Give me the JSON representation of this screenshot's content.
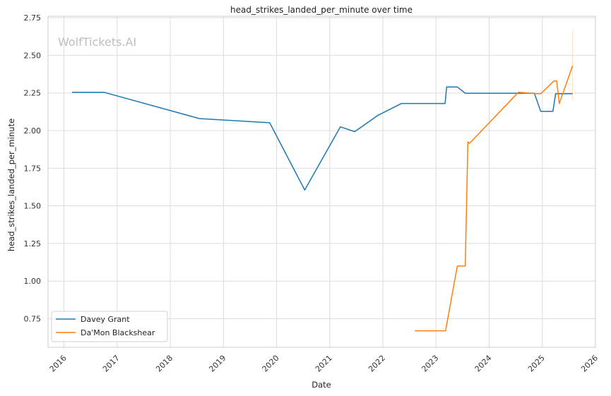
{
  "chart_data": {
    "type": "line",
    "title": "head_strikes_landed_per_minute over time",
    "xlabel": "Date",
    "ylabel": "head_strikes_landed_per_minute",
    "watermark": "WolfTickets.AI",
    "xlim": [
      2015.7,
      2026.0
    ],
    "ylim": [
      0.56,
      2.76
    ],
    "x_ticks": [
      2016,
      2017,
      2018,
      2019,
      2020,
      2021,
      2022,
      2023,
      2024,
      2025,
      2026
    ],
    "y_ticks": [
      0.75,
      1.0,
      1.25,
      1.5,
      1.75,
      2.0,
      2.25,
      2.5,
      2.75
    ],
    "y_tick_labels": [
      "0.75",
      "1.00",
      "1.25",
      "1.50",
      "1.75",
      "2.00",
      "2.25",
      "2.50",
      "2.75"
    ],
    "grid": true,
    "legend_position": "lower-left",
    "series": [
      {
        "name": "Davey Grant",
        "color": "#1f77b4",
        "points": [
          [
            2016.15,
            2.255
          ],
          [
            2016.75,
            2.255
          ],
          [
            2018.55,
            2.08
          ],
          [
            2019.87,
            2.052
          ],
          [
            2020.53,
            1.605
          ],
          [
            2021.2,
            2.025
          ],
          [
            2021.47,
            1.993
          ],
          [
            2021.9,
            2.1
          ],
          [
            2022.35,
            2.18
          ],
          [
            2023.17,
            2.18
          ],
          [
            2023.2,
            2.29
          ],
          [
            2023.4,
            2.29
          ],
          [
            2023.55,
            2.248
          ],
          [
            2024.85,
            2.248
          ],
          [
            2024.97,
            2.128
          ],
          [
            2025.2,
            2.128
          ],
          [
            2025.25,
            2.245
          ],
          [
            2025.57,
            2.245
          ]
        ]
      },
      {
        "name": "Da'Mon Blackshear",
        "color": "#ff7f0e",
        "points": [
          [
            2022.6,
            0.67
          ],
          [
            2023.18,
            0.67
          ],
          [
            2023.4,
            1.1
          ],
          [
            2023.55,
            1.1
          ],
          [
            2023.6,
            1.925
          ],
          [
            2023.63,
            1.915
          ],
          [
            2024.55,
            2.255
          ],
          [
            2024.9,
            2.245
          ],
          [
            2024.97,
            2.245
          ],
          [
            2025.22,
            2.33
          ],
          [
            2025.27,
            2.33
          ],
          [
            2025.32,
            2.18
          ],
          [
            2025.57,
            2.43
          ]
        ],
        "error_band": {
          "x": 2025.57,
          "low": 2.2,
          "high": 2.67
        }
      }
    ]
  }
}
